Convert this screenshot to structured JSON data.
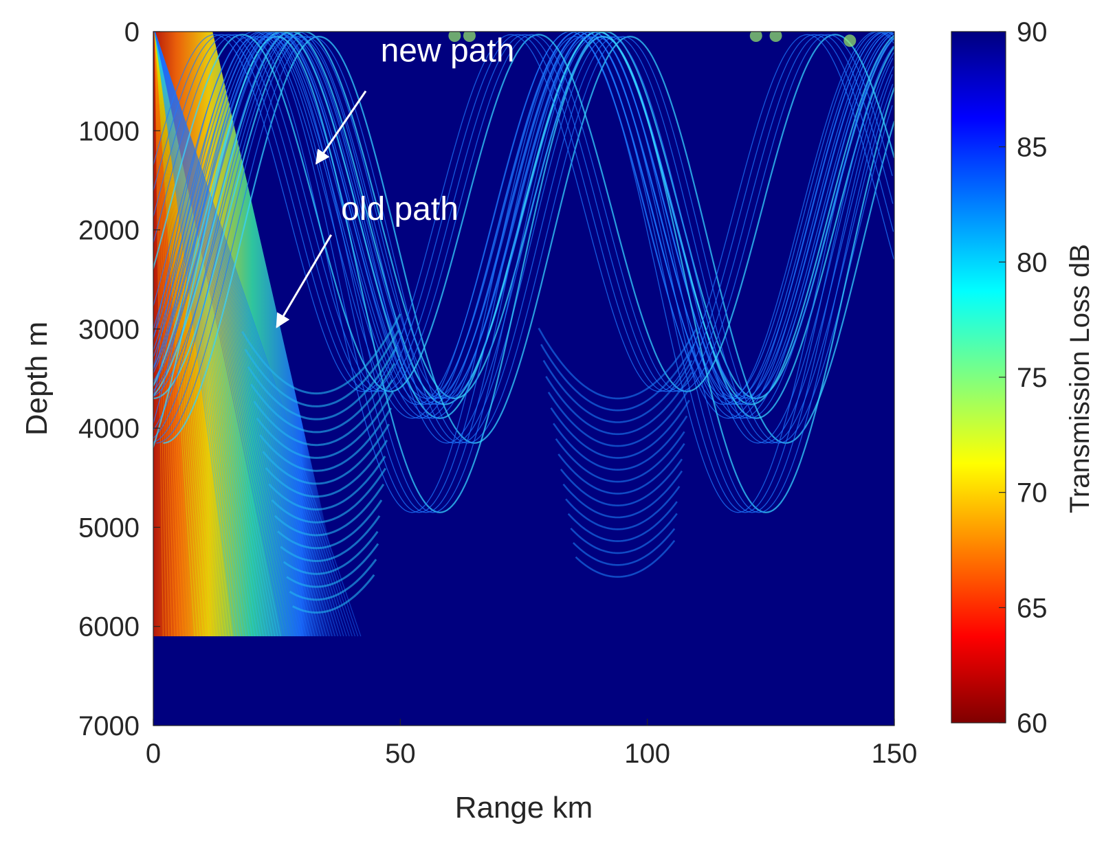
{
  "chart_data": {
    "type": "heatmap",
    "title": "",
    "xlabel": "Range km",
    "ylabel": "Depth m",
    "xlim": [
      0,
      150
    ],
    "ylim": [
      7000,
      0
    ],
    "x_ticks": [
      0,
      50,
      100,
      150
    ],
    "y_ticks": [
      0,
      1000,
      2000,
      3000,
      4000,
      5000,
      6000,
      7000
    ],
    "x_tick_labels": [
      "0",
      "50",
      "100",
      "150"
    ],
    "y_tick_labels": [
      "0",
      "1000",
      "2000",
      "3000",
      "4000",
      "5000",
      "6000",
      "7000"
    ],
    "colorbar": {
      "label": "Transmission Loss dB",
      "range": [
        60,
        90
      ],
      "ticks": [
        60,
        65,
        70,
        75,
        80,
        85,
        90
      ],
      "tick_labels": [
        "60",
        "65",
        "70",
        "75",
        "80",
        "85",
        "90"
      ],
      "colormap": "jet-reversed"
    },
    "bottom_depth": 6100,
    "convergence_zones": [
      {
        "range_km": 61,
        "depth_m": 0
      },
      {
        "range_km": 64,
        "depth_m": 0
      },
      {
        "range_km": 122,
        "depth_m": 0
      },
      {
        "range_km": 126,
        "depth_m": 0
      },
      {
        "range_km": 141,
        "depth_m": 50
      }
    ],
    "annotations": [
      {
        "text": "new path",
        "text_at": [
          46,
          300
        ],
        "arrow_from": [
          43,
          600
        ],
        "arrow_to": [
          33,
          1330
        ]
      },
      {
        "text": "old path",
        "text_at": [
          38,
          1900
        ],
        "arrow_from": [
          36,
          2050
        ],
        "arrow_to": [
          25,
          2980
        ]
      }
    ]
  },
  "colors": {
    "background_field": "#00007f",
    "ray": "#1e78ff",
    "hot": "#ff3000",
    "annotation": "#ffffff"
  }
}
